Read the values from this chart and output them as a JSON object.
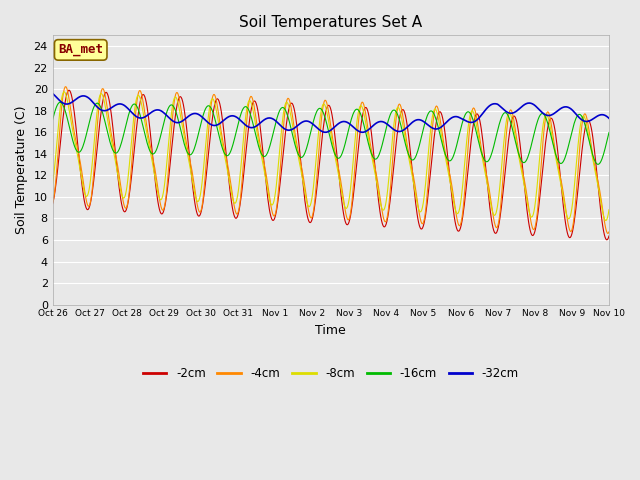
{
  "title": "Soil Temperatures Set A",
  "xlabel": "Time",
  "ylabel": "Soil Temperature (C)",
  "ylim": [
    0,
    25
  ],
  "yticks": [
    0,
    2,
    4,
    6,
    8,
    10,
    12,
    14,
    16,
    18,
    20,
    22,
    24
  ],
  "xtick_labels": [
    "Oct 26",
    "Oct 27",
    "Oct 28",
    "Oct 29",
    "Oct 30",
    "Oct 31",
    "Nov 1",
    "Nov 2",
    "Nov 3",
    "Nov 4",
    "Nov 5",
    "Nov 6",
    "Nov 7",
    "Nov 8",
    "Nov 9",
    "Nov 10"
  ],
  "legend_labels": [
    "-2cm",
    "-4cm",
    "-8cm",
    "-16cm",
    "-32cm"
  ],
  "legend_colors": [
    "#cc0000",
    "#ff8800",
    "#dddd00",
    "#00bb00",
    "#0000cc"
  ],
  "label_box_text": "BA_met",
  "label_box_color": "#ffff99",
  "label_box_border": "#886600",
  "label_text_color": "#880000",
  "background_color": "#e8e8e8",
  "grid_color": "#ffffff",
  "title_fontsize": 11,
  "axis_fontsize": 9,
  "tick_fontsize": 8
}
